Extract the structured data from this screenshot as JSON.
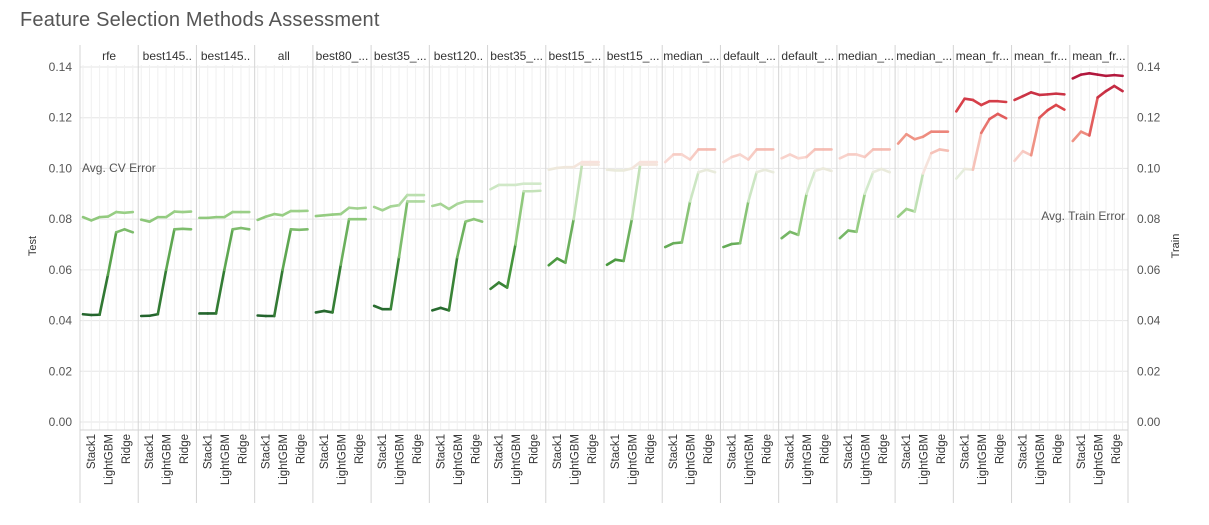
{
  "chart_data": {
    "type": "line",
    "title": "Feature Selection Methods Assessment",
    "y_left_label": "Test",
    "y_right_label": "Train",
    "ylim": [
      0,
      0.14
    ],
    "yticks": [
      "0.00",
      "0.02",
      "0.04",
      "0.06",
      "0.08",
      "0.10",
      "0.12",
      "0.14"
    ],
    "annotations": {
      "cv": "Avg. CV Error",
      "train": "Avg. Train Error"
    },
    "x_labels": [
      "Stack1",
      "LightGBM",
      "Ridge"
    ],
    "groups": [
      {
        "name": "rfe",
        "train": [
          0.0425,
          0.0422,
          0.0423,
          0.058,
          0.0748,
          0.076,
          0.0748
        ],
        "test": [
          0.0808,
          0.0795,
          0.0808,
          0.081,
          0.0828,
          0.0825,
          0.0828
        ]
      },
      {
        "name": "best145..",
        "train": [
          0.0418,
          0.0419,
          0.0425,
          0.06,
          0.076,
          0.0762,
          0.076
        ],
        "test": [
          0.0798,
          0.079,
          0.0808,
          0.0808,
          0.083,
          0.0828,
          0.083
        ]
      },
      {
        "name": "best145..",
        "train": [
          0.0428,
          0.0428,
          0.0428,
          0.06,
          0.076,
          0.0765,
          0.076
        ],
        "test": [
          0.0805,
          0.0805,
          0.0808,
          0.0808,
          0.0828,
          0.0828,
          0.0828
        ]
      },
      {
        "name": "all",
        "train": [
          0.042,
          0.0418,
          0.0418,
          0.06,
          0.076,
          0.0758,
          0.076
        ],
        "test": [
          0.0797,
          0.081,
          0.082,
          0.0815,
          0.0832,
          0.0832,
          0.0833
        ]
      },
      {
        "name": "best80_...",
        "train": [
          0.0432,
          0.0438,
          0.0432,
          0.062,
          0.08,
          0.08,
          0.08
        ],
        "test": [
          0.0812,
          0.0815,
          0.0818,
          0.082,
          0.0845,
          0.0842,
          0.0845
        ]
      },
      {
        "name": "best35_...",
        "train": [
          0.0458,
          0.0445,
          0.0445,
          0.065,
          0.087,
          0.087,
          0.087
        ],
        "test": [
          0.0848,
          0.0835,
          0.085,
          0.0855,
          0.0895,
          0.0895,
          0.0895
        ]
      },
      {
        "name": "best120..",
        "train": [
          0.044,
          0.045,
          0.044,
          0.065,
          0.079,
          0.08,
          0.079
        ],
        "test": [
          0.0852,
          0.086,
          0.084,
          0.086,
          0.087,
          0.087,
          0.087
        ]
      },
      {
        "name": "best35_...",
        "train": [
          0.0525,
          0.055,
          0.053,
          0.07,
          0.091,
          0.091,
          0.0912
        ],
        "test": [
          0.0918,
          0.0935,
          0.0935,
          0.0935,
          0.094,
          0.094,
          0.094
        ]
      },
      {
        "name": "best15_...",
        "train": [
          0.0618,
          0.0645,
          0.0628,
          0.08,
          0.1015,
          0.1015,
          0.1015
        ],
        "test": [
          0.0995,
          0.1002,
          0.1005,
          0.1005,
          0.1025,
          0.1025,
          0.1025
        ]
      },
      {
        "name": "best15_...",
        "train": [
          0.062,
          0.064,
          0.0635,
          0.08,
          0.1015,
          0.1015,
          0.1015
        ],
        "test": [
          0.0995,
          0.0992,
          0.0992,
          0.1,
          0.1025,
          0.1025,
          0.1025
        ]
      },
      {
        "name": "median_...",
        "train": [
          0.069,
          0.0705,
          0.0708,
          0.087,
          0.0985,
          0.0995,
          0.0985
        ],
        "test": [
          0.1025,
          0.1055,
          0.1055,
          0.1035,
          0.1075,
          0.1075,
          0.1075
        ]
      },
      {
        "name": "default_...",
        "train": [
          0.069,
          0.0702,
          0.0705,
          0.087,
          0.0985,
          0.0995,
          0.0985
        ],
        "test": [
          0.1025,
          0.1045,
          0.1055,
          0.1035,
          0.1075,
          0.1075,
          0.1075
        ]
      },
      {
        "name": "default_...",
        "train": [
          0.0725,
          0.075,
          0.0738,
          0.09,
          0.099,
          0.1,
          0.099
        ],
        "test": [
          0.104,
          0.1055,
          0.104,
          0.1045,
          0.1075,
          0.1075,
          0.1075
        ]
      },
      {
        "name": "median_...",
        "train": [
          0.0725,
          0.0755,
          0.075,
          0.09,
          0.0985,
          0.0998,
          0.0985
        ],
        "test": [
          0.104,
          0.1055,
          0.1055,
          0.1045,
          0.1075,
          0.1075,
          0.1075
        ]
      },
      {
        "name": "median_...",
        "train": [
          0.081,
          0.084,
          0.083,
          0.098,
          0.106,
          0.1075,
          0.107
        ],
        "test": [
          0.1098,
          0.1135,
          0.1115,
          0.1125,
          0.1145,
          0.1145,
          0.1145
        ]
      },
      {
        "name": "mean_fr...",
        "train": [
          0.096,
          0.0998,
          0.0995,
          0.114,
          0.1195,
          0.1215,
          0.1198
        ],
        "test": [
          0.1225,
          0.1275,
          0.127,
          0.125,
          0.1265,
          0.1265,
          0.1262
        ]
      },
      {
        "name": "mean_fr...",
        "train": [
          0.103,
          0.1068,
          0.1052,
          0.12,
          0.123,
          0.125,
          0.1232
        ],
        "test": [
          0.127,
          0.1285,
          0.13,
          0.129,
          0.1292,
          0.1295,
          0.1292
        ]
      },
      {
        "name": "mean_fr...",
        "train": [
          0.1108,
          0.1145,
          0.113,
          0.128,
          0.1305,
          0.1325,
          0.1305
        ],
        "test": [
          0.1355,
          0.137,
          0.1375,
          0.137,
          0.1365,
          0.1368,
          0.1365
        ]
      }
    ]
  }
}
